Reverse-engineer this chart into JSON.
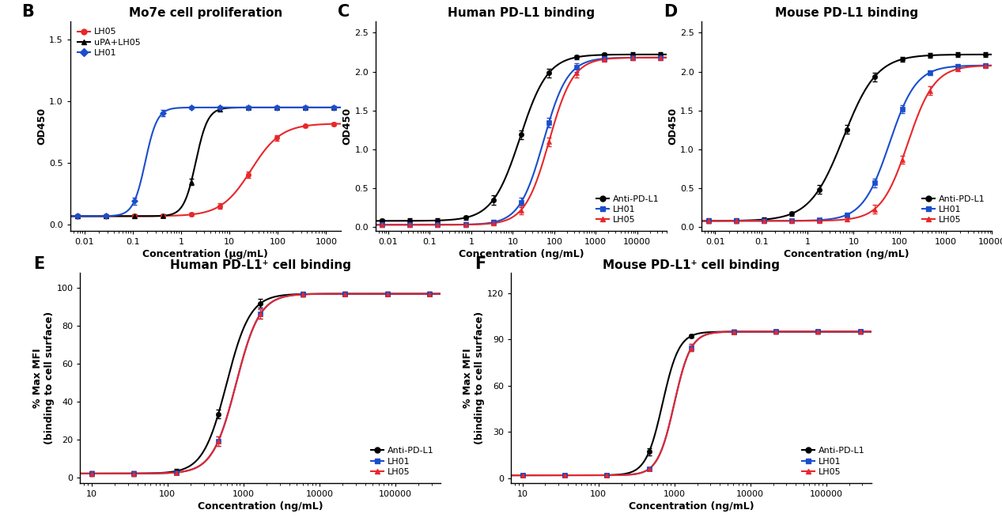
{
  "panel_B": {
    "title": "Mo7e cell proliferation",
    "label": "B",
    "xlabel": "Concentration (μg/mL)",
    "ylabel": "OD450",
    "ylim": [
      -0.05,
      1.65
    ],
    "yticks": [
      0.0,
      0.5,
      1.0,
      1.5
    ],
    "xmin_log": -2.3,
    "xmax_log": 3.3,
    "xlog_ticks": [
      0.01,
      0.1,
      1,
      10,
      100,
      1000
    ],
    "xlog_tick_labels": [
      "0.01",
      "0.1",
      "1",
      "10",
      "100",
      "1000"
    ],
    "legend_loc": "upper left",
    "series": [
      {
        "label": "LH05",
        "color": "#e8272a",
        "ec50": 28.0,
        "hill": 1.4,
        "bottom": 0.07,
        "top": 0.82,
        "marker": "o",
        "n_pts": 10
      },
      {
        "label": "uPA+LH05",
        "color": "#000000",
        "ec50": 2.0,
        "hill": 3.5,
        "bottom": 0.07,
        "top": 0.95,
        "marker": "^",
        "n_pts": 10
      },
      {
        "label": "LH01",
        "color": "#1a4ecc",
        "ec50": 0.18,
        "hill": 3.5,
        "bottom": 0.07,
        "top": 0.95,
        "marker": "D",
        "n_pts": 10
      }
    ]
  },
  "panel_C": {
    "title": "Human PD-L1 binding",
    "label": "C",
    "xlabel": "Concentration (ng/mL)",
    "ylabel": "OD450",
    "ylim": [
      -0.05,
      2.65
    ],
    "yticks": [
      0.0,
      0.5,
      1.0,
      1.5,
      2.0,
      2.5
    ],
    "xmin_log": -2.3,
    "xmax_log": 4.7,
    "xlog_ticks": [
      0.01,
      0.1,
      1,
      10,
      100,
      1000,
      10000
    ],
    "xlog_tick_labels": [
      "0.01",
      "0.1",
      "1",
      "10",
      "100",
      "1000",
      "10000"
    ],
    "legend_loc": "lower right",
    "series": [
      {
        "label": "Anti-PD-L1",
        "color": "#000000",
        "ec50": 15.0,
        "hill": 1.3,
        "bottom": 0.08,
        "top": 2.22,
        "marker": "o",
        "n_pts": 11
      },
      {
        "label": "LH01",
        "color": "#1a4ecc",
        "ec50": 55.0,
        "hill": 1.5,
        "bottom": 0.03,
        "top": 2.18,
        "marker": "s",
        "n_pts": 11
      },
      {
        "label": "LH05",
        "color": "#e8272a",
        "ec50": 75.0,
        "hill": 1.5,
        "bottom": 0.03,
        "top": 2.18,
        "marker": "^",
        "n_pts": 11
      }
    ]
  },
  "panel_D": {
    "title": "Mouse PD-L1 binding",
    "label": "D",
    "xlabel": "Concentration (ng/mL)",
    "ylabel": "OD450",
    "ylim": [
      -0.05,
      2.65
    ],
    "yticks": [
      0.0,
      0.5,
      1.0,
      1.5,
      2.0,
      2.5
    ],
    "xmin_log": -2.3,
    "xmax_log": 4.0,
    "xlog_ticks": [
      0.01,
      0.1,
      1,
      10,
      100,
      1000,
      10000
    ],
    "xlog_tick_labels": [
      "0.01",
      "0.1",
      "1",
      "10",
      "100",
      "1000",
      "10000"
    ],
    "legend_loc": "lower right",
    "series": [
      {
        "label": "Anti-PD-L1",
        "color": "#000000",
        "ec50": 6.0,
        "hill": 1.2,
        "bottom": 0.08,
        "top": 2.22,
        "marker": "o",
        "n_pts": 11
      },
      {
        "label": "LH01",
        "color": "#1a4ecc",
        "ec50": 60.0,
        "hill": 1.5,
        "bottom": 0.08,
        "top": 2.08,
        "marker": "s",
        "n_pts": 11
      },
      {
        "label": "LH05",
        "color": "#e8272a",
        "ec50": 150.0,
        "hill": 1.5,
        "bottom": 0.08,
        "top": 2.08,
        "marker": "^",
        "n_pts": 11
      }
    ]
  },
  "panel_E": {
    "title": "Human PD-L1⁺ cell binding",
    "label": "E",
    "xlabel": "Concentration (ng/mL)",
    "ylabel": "% Max MFI\n(binding to cell surface)",
    "ylim": [
      -3,
      108
    ],
    "yticks": [
      0,
      20,
      40,
      60,
      80,
      100
    ],
    "xmin_log": 0.85,
    "xmax_log": 5.6,
    "xlog_ticks": [
      10,
      100,
      1000,
      10000,
      100000
    ],
    "xlog_tick_labels": [
      "10",
      "100",
      "1000",
      "10000",
      "100000"
    ],
    "legend_loc": "lower right",
    "series": [
      {
        "label": "Anti-PD-L1",
        "color": "#000000",
        "ec50": 600,
        "hill": 2.8,
        "bottom": 2,
        "top": 97,
        "marker": "o",
        "n_pts": 9
      },
      {
        "label": "LH01",
        "color": "#1a4ecc",
        "ec50": 800,
        "hill": 2.8,
        "bottom": 2,
        "top": 97,
        "marker": "s",
        "n_pts": 9
      },
      {
        "label": "LH05",
        "color": "#e8272a",
        "ec50": 800,
        "hill": 2.8,
        "bottom": 2,
        "top": 97,
        "marker": "^",
        "n_pts": 9
      }
    ]
  },
  "panel_F": {
    "title": "Mouse PD-L1⁺ cell binding",
    "label": "F",
    "xlabel": "Concentration (ng/mL)",
    "ylabel": "% Max MFI\n(binding to cell surface)",
    "ylim": [
      -3,
      133
    ],
    "yticks": [
      0,
      30,
      60,
      90,
      120
    ],
    "xmin_log": 0.85,
    "xmax_log": 5.6,
    "xlog_ticks": [
      10,
      100,
      1000,
      10000,
      100000
    ],
    "xlog_tick_labels": [
      "10",
      "100",
      "1000",
      "10000",
      "100000"
    ],
    "legend_loc": "lower right",
    "series": [
      {
        "label": "Anti-PD-L1",
        "color": "#000000",
        "ec50": 700,
        "hill": 4.0,
        "bottom": 2,
        "top": 95,
        "marker": "o",
        "n_pts": 9
      },
      {
        "label": "LH01",
        "color": "#1a4ecc",
        "ec50": 1000,
        "hill": 4.0,
        "bottom": 2,
        "top": 95,
        "marker": "s",
        "n_pts": 9
      },
      {
        "label": "LH05",
        "color": "#e8272a",
        "ec50": 1000,
        "hill": 4.0,
        "bottom": 2,
        "top": 95,
        "marker": "^",
        "n_pts": 9
      }
    ]
  },
  "bg_color": "#ffffff",
  "title_fontsize": 11,
  "label_fontsize": 9,
  "tick_fontsize": 8,
  "legend_fontsize": 8
}
